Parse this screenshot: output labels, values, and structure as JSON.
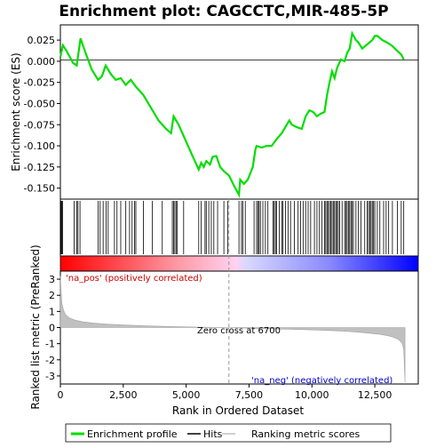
{
  "chart_data": [
    {
      "type": "line",
      "title": "Enrichment plot: CAGCCTC,MIR-485-5P",
      "ylabel": "Enrichment score (ES)",
      "ylim": [
        -0.163,
        0.043
      ],
      "xlim": [
        0,
        14227
      ],
      "grid": false,
      "yticks": [
        0.025,
        0.0,
        -0.025,
        -0.05,
        -0.075,
        -0.1,
        -0.125,
        -0.15
      ],
      "ytick_labels": [
        "0.025",
        "0.000",
        "-0.025",
        "-0.050",
        "-0.075",
        "-0.100",
        "-0.125",
        "-0.150"
      ],
      "series": [
        {
          "name": "Enrichment profile",
          "color": "#00dd00",
          "x": [
            0,
            100,
            250,
            500,
            650,
            800,
            1000,
            1250,
            1500,
            1650,
            1800,
            2000,
            2200,
            2400,
            2600,
            2800,
            3000,
            3300,
            3600,
            3900,
            4200,
            4400,
            4500,
            4700,
            5000,
            5300,
            5500,
            5600,
            5700,
            5800,
            5950,
            6050,
            6200,
            6350,
            6500,
            6700,
            6950,
            7100,
            7150,
            7300,
            7450,
            7650,
            7750,
            7800,
            8000,
            8200,
            8400,
            8600,
            8800,
            9000,
            9100,
            9200,
            9400,
            9600,
            9750,
            9900,
            10050,
            10200,
            10350,
            10500,
            10600,
            10700,
            10800,
            10900,
            11000,
            11150,
            11300,
            11400,
            11500,
            11600,
            11750,
            11850,
            12000,
            12200,
            12400,
            12500,
            12600,
            12800,
            13000,
            13200,
            13400,
            13550,
            13650
          ],
          "y": [
            0.005,
            0.019,
            0.012,
            -0.002,
            -0.005,
            0.027,
            0.01,
            -0.01,
            -0.022,
            -0.018,
            -0.005,
            -0.015,
            -0.022,
            -0.02,
            -0.028,
            -0.022,
            -0.03,
            -0.04,
            -0.055,
            -0.07,
            -0.08,
            -0.085,
            -0.065,
            -0.075,
            -0.095,
            -0.115,
            -0.128,
            -0.12,
            -0.125,
            -0.118,
            -0.122,
            -0.113,
            -0.112,
            -0.125,
            -0.13,
            -0.135,
            -0.15,
            -0.158,
            -0.14,
            -0.145,
            -0.14,
            -0.125,
            -0.105,
            -0.1,
            -0.102,
            -0.1,
            -0.1,
            -0.092,
            -0.085,
            -0.075,
            -0.07,
            -0.075,
            -0.078,
            -0.08,
            -0.065,
            -0.058,
            -0.06,
            -0.065,
            -0.062,
            -0.06,
            -0.04,
            -0.025,
            -0.012,
            -0.02,
            -0.008,
            0.002,
            0.0,
            0.01,
            0.015,
            0.033,
            0.025,
            0.022,
            0.015,
            0.02,
            0.025,
            0.03,
            0.03,
            0.025,
            0.022,
            0.018,
            0.012,
            0.008,
            0.002
          ]
        }
      ]
    },
    {
      "type": "area",
      "ylabel": "Ranked list metric (PreRanked)",
      "xlabel": "Rank in Ordered Dataset",
      "ylim": [
        -3.5,
        3.5
      ],
      "xlim": [
        0,
        14227
      ],
      "yticks": [
        3,
        2,
        1,
        0,
        -1,
        -2,
        -3
      ],
      "ytick_labels": [
        "3",
        "2",
        "1",
        "0",
        "-1",
        "-2",
        "-3"
      ],
      "xticks": [
        0,
        2500,
        5000,
        7500,
        10000,
        12500
      ],
      "xtick_labels": [
        "0",
        "2,500",
        "5,000",
        "7,500",
        "10,000",
        "12,500"
      ],
      "series": [
        {
          "name": "Ranking metric scores",
          "color": "#c0c0c0",
          "x": [
            0,
            20,
            60,
            120,
            200,
            350,
            600,
            900,
            1300,
            1800,
            2500,
            3500,
            4500,
            5500,
            6700,
            7500,
            8500,
            9500,
            10500,
            11200,
            11800,
            12300,
            12700,
            13000,
            13200,
            13400,
            13500,
            13600,
            13650,
            13700
          ],
          "y": [
            3.2,
            2.4,
            1.5,
            1.1,
            0.8,
            0.6,
            0.45,
            0.35,
            0.28,
            0.22,
            0.16,
            0.1,
            0.06,
            0.03,
            0.0,
            -0.04,
            -0.08,
            -0.12,
            -0.17,
            -0.22,
            -0.28,
            -0.35,
            -0.42,
            -0.5,
            -0.58,
            -0.7,
            -0.82,
            -1.0,
            -1.4,
            -3.4
          ]
        }
      ],
      "annotations": [
        {
          "text": "'na_pos' (positively correlated)",
          "color": "#cc0000",
          "position": "top-left"
        },
        {
          "text": "Zero cross at 6700",
          "x": 6700,
          "color": "#000000"
        },
        {
          "text": "'na_neg' (negatively correlated)",
          "color": "#0000cc",
          "position": "bottom-right"
        }
      ],
      "zero_cross": 6700
    }
  ],
  "hits": [
    30,
    60,
    90,
    550,
    650,
    700,
    780,
    1500,
    1580,
    1700,
    1820,
    1900,
    2150,
    2250,
    2400,
    2600,
    2750,
    2850,
    2950,
    3000,
    3300,
    3650,
    4050,
    4450,
    4500,
    4550,
    4600,
    4650,
    4900,
    5500,
    5600,
    5750,
    5800,
    5900,
    6000,
    6100,
    6250,
    6500,
    6650,
    7100,
    7200,
    7250,
    7350,
    7700,
    7800,
    7850,
    7900,
    7950,
    8050,
    8150,
    8250,
    8450,
    8500,
    8550,
    8600,
    8700,
    8800,
    8850,
    8950,
    9050,
    9150,
    9300,
    9450,
    9550,
    9650,
    9750,
    9850,
    9950,
    10100,
    10200,
    10300,
    10400,
    10500,
    10550,
    10600,
    10650,
    10700,
    10750,
    10800,
    10850,
    10900,
    10950,
    11000,
    11050,
    11100,
    11200,
    11300,
    11350,
    11400,
    11450,
    11500,
    11550,
    11600,
    11650,
    11750,
    11850,
    11950,
    12100,
    12200,
    12250,
    12300,
    12350,
    12400,
    12450,
    12500,
    12600,
    12700,
    12850,
    12950,
    13050,
    13200,
    13400,
    13550,
    13650
  ],
  "legend": [
    {
      "label": "Enrichment profile",
      "color": "#00dd00",
      "kind": "line-thick"
    },
    {
      "label": "Hits",
      "color": "#000000",
      "kind": "line"
    },
    {
      "label": "Ranking metric scores",
      "color": "#c0c0c0",
      "kind": "line"
    }
  ]
}
